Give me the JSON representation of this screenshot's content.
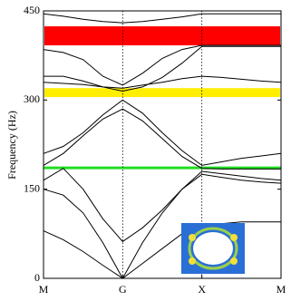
{
  "chart_data": {
    "type": "line",
    "ylabel": "Frequency (Hz)",
    "xlim": [
      0,
      3
    ],
    "ylim": [
      0,
      450
    ],
    "xticks": [
      {
        "value": 0,
        "label": "M"
      },
      {
        "value": 1,
        "label": "G"
      },
      {
        "value": 2,
        "label": "X"
      },
      {
        "value": 3,
        "label": "M"
      }
    ],
    "yticks": [
      0,
      150,
      300,
      450
    ],
    "vlines": [
      1,
      2
    ],
    "bands": [
      {
        "from": 392,
        "to": 424,
        "color": "#ff0000"
      },
      {
        "from": 305,
        "to": 320,
        "color": "#ffee00"
      }
    ],
    "hline": {
      "value": 186,
      "color": "#22dd22"
    },
    "x": [
      0,
      0.25,
      0.5,
      0.75,
      1,
      1.25,
      1.5,
      1.75,
      2,
      2.25,
      2.5,
      2.75,
      3
    ],
    "series": [
      {
        "color": "#000000",
        "values": [
          80,
          65,
          45,
          22,
          0,
          25,
          50,
          75,
          90,
          92,
          95,
          95,
          95
        ]
      },
      {
        "color": "#000000",
        "values": [
          150,
          140,
          110,
          60,
          0,
          60,
          110,
          150,
          175,
          170,
          165,
          162,
          160
        ]
      },
      {
        "color": "#000000",
        "values": [
          165,
          185,
          150,
          100,
          62,
          85,
          115,
          150,
          180,
          176,
          172,
          168,
          165
        ]
      },
      {
        "color": "#000000",
        "values": [
          210,
          222,
          245,
          275,
          300,
          278,
          245,
          215,
          190,
          196,
          202,
          206,
          210
        ]
      },
      {
        "color": "#000000",
        "values": [
          190,
          210,
          240,
          268,
          285,
          265,
          235,
          205,
          185,
          184,
          184,
          184,
          184
        ]
      },
      {
        "color": "#000000",
        "values": [
          330,
          328,
          326,
          322,
          320,
          325,
          330,
          336,
          340,
          338,
          335,
          332,
          330
        ]
      },
      {
        "color": "#000000",
        "values": [
          340,
          340,
          332,
          322,
          315,
          322,
          338,
          362,
          390,
          390,
          390,
          390,
          390
        ]
      },
      {
        "color": "#000000",
        "values": [
          385,
          380,
          368,
          340,
          325,
          345,
          370,
          385,
          392,
          392,
          392,
          392,
          392
        ]
      },
      {
        "color": "#000000",
        "values": [
          445,
          441,
          436,
          432,
          430,
          432,
          436,
          440,
          445,
          445,
          445,
          445,
          445
        ]
      }
    ]
  }
}
